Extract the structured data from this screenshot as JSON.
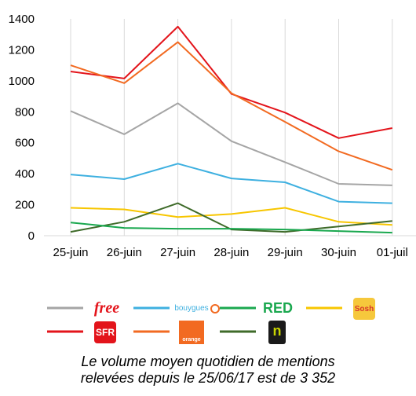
{
  "chart_data": {
    "type": "line",
    "categories": [
      "25-juin",
      "26-juin",
      "27-juin",
      "28-juin",
      "29-juin",
      "30-juin",
      "01-juil"
    ],
    "ylim": [
      0,
      1400
    ],
    "yticks": [
      0,
      200,
      400,
      600,
      800,
      1000,
      1200,
      1400
    ],
    "grid": "vertical",
    "legend_position": "bottom",
    "series": [
      {
        "key": "sfr",
        "color": "#e3141b",
        "values": [
          1060,
          1015,
          1350,
          915,
          795,
          630,
          695
        ]
      },
      {
        "key": "orange",
        "color": "#f26a21",
        "values": [
          1100,
          985,
          1250,
          920,
          735,
          545,
          425
        ]
      },
      {
        "key": "free",
        "color": "#a5a5a5",
        "values": [
          805,
          655,
          855,
          610,
          475,
          335,
          325
        ]
      },
      {
        "key": "bouygues",
        "color": "#3eb0e0",
        "values": [
          395,
          365,
          465,
          370,
          345,
          220,
          210
        ]
      },
      {
        "key": "sosh",
        "color": "#f7c600",
        "values": [
          180,
          170,
          120,
          140,
          180,
          90,
          70
        ]
      },
      {
        "key": "nrj",
        "color": "#3f6b2a",
        "values": [
          25,
          90,
          210,
          40,
          25,
          60,
          95
        ]
      },
      {
        "key": "red",
        "color": "#1aa84f",
        "values": [
          85,
          50,
          45,
          45,
          40,
          30,
          20
        ]
      }
    ]
  },
  "legend": [
    {
      "key": "free",
      "logo_text": "free",
      "logo_color": "#e3141b"
    },
    {
      "key": "bouygues",
      "logo_text": "bouygues",
      "logo_color": "#3eb0e0"
    },
    {
      "key": "red",
      "logo_text": "RED",
      "logo_color": "#1aa84f"
    },
    {
      "key": "sosh",
      "logo_text": "Sosh",
      "logo_color": "#d9352c"
    },
    {
      "key": "sfr",
      "logo_text": "SFR",
      "logo_color": "#ffffff"
    },
    {
      "key": "orange",
      "logo_text": "orange",
      "logo_color": "#ffffff"
    },
    {
      "key": "nrj",
      "logo_text": "n",
      "logo_color": "#c8d400"
    }
  ],
  "caption": {
    "line1": "Le volume moyen quotidien de mentions",
    "line2": "relevées depuis le 25/06/17 est de 3 352"
  }
}
